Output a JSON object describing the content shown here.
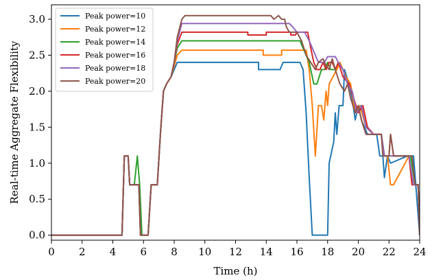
{
  "chart_data": {
    "type": "line",
    "xlabel": "Time (h)",
    "ylabel": "Real-time Aggregate Flexibility",
    "xlim": [
      0,
      24
    ],
    "ylim": [
      -0.07,
      3.2
    ],
    "xticks": [
      0,
      2,
      4,
      6,
      8,
      10,
      12,
      14,
      16,
      18,
      20,
      22,
      24
    ],
    "yticks": [
      0.0,
      0.5,
      1.0,
      1.5,
      2.0,
      2.5,
      3.0
    ],
    "ytick_labels": [
      "0.0",
      "0.5",
      "1.0",
      "1.5",
      "2.0",
      "2.5",
      "3.0"
    ],
    "grid": false,
    "legend": "upper-left",
    "series": [
      {
        "name": "Peak power=10",
        "color": "#1f77b4",
        "points": [
          [
            0,
            0
          ],
          [
            4.6,
            0
          ],
          [
            4.75,
            1.1
          ],
          [
            5.0,
            1.1
          ],
          [
            5.1,
            0.7
          ],
          [
            5.4,
            0.7
          ],
          [
            5.7,
            0.7
          ],
          [
            5.8,
            0
          ],
          [
            6.3,
            0
          ],
          [
            6.5,
            0.7
          ],
          [
            6.9,
            0.7
          ],
          [
            7.1,
            1.4
          ],
          [
            7.3,
            2.0
          ],
          [
            7.5,
            2.1
          ],
          [
            7.8,
            2.2
          ],
          [
            8.0,
            2.3
          ],
          [
            8.2,
            2.4
          ],
          [
            13.5,
            2.4
          ],
          [
            13.5,
            2.3
          ],
          [
            14.9,
            2.3
          ],
          [
            15.1,
            2.4
          ],
          [
            16.2,
            2.4
          ],
          [
            16.4,
            2.3
          ],
          [
            16.6,
            1.7
          ],
          [
            16.8,
            0.8
          ],
          [
            17.0,
            0
          ],
          [
            18.0,
            0
          ],
          [
            18.1,
            1.0
          ],
          [
            18.4,
            1.3
          ],
          [
            18.5,
            1.7
          ],
          [
            18.6,
            1.4
          ],
          [
            18.75,
            1.8
          ],
          [
            19.0,
            1.8
          ],
          [
            19.1,
            2.3
          ],
          [
            19.4,
            2.1
          ],
          [
            19.6,
            1.9
          ],
          [
            19.8,
            1.6
          ],
          [
            20.0,
            1.8
          ],
          [
            20.2,
            1.6
          ],
          [
            20.6,
            1.4
          ],
          [
            21.2,
            1.4
          ],
          [
            21.4,
            1.1
          ],
          [
            21.6,
            1.1
          ],
          [
            21.7,
            0.8
          ],
          [
            21.9,
            1.1
          ],
          [
            22.1,
            1.0
          ],
          [
            23.2,
            1.1
          ],
          [
            23.6,
            1.1
          ],
          [
            24,
            0
          ]
        ]
      },
      {
        "name": "Peak power=12",
        "color": "#ff7f0e",
        "points": [
          [
            0,
            0
          ],
          [
            4.6,
            0
          ],
          [
            4.75,
            1.1
          ],
          [
            5.0,
            1.1
          ],
          [
            5.1,
            0.7
          ],
          [
            5.7,
            0.7
          ],
          [
            5.8,
            0
          ],
          [
            6.3,
            0
          ],
          [
            6.5,
            0.7
          ],
          [
            6.9,
            0.7
          ],
          [
            7.1,
            1.4
          ],
          [
            7.3,
            2.0
          ],
          [
            7.5,
            2.1
          ],
          [
            7.8,
            2.2
          ],
          [
            8.0,
            2.35
          ],
          [
            8.2,
            2.5
          ],
          [
            8.5,
            2.57
          ],
          [
            13.8,
            2.57
          ],
          [
            13.8,
            2.5
          ],
          [
            15.0,
            2.5
          ],
          [
            15.0,
            2.57
          ],
          [
            16.6,
            2.57
          ],
          [
            16.8,
            2.3
          ],
          [
            17.0,
            1.8
          ],
          [
            17.2,
            1.1
          ],
          [
            17.4,
            1.8
          ],
          [
            17.6,
            1.8
          ],
          [
            17.75,
            1.6
          ],
          [
            17.9,
            2.0
          ],
          [
            18.0,
            1.8
          ],
          [
            18.1,
            2.1
          ],
          [
            18.6,
            2.3
          ],
          [
            18.8,
            2.4
          ],
          [
            19.2,
            2.2
          ],
          [
            19.5,
            2.1
          ],
          [
            19.8,
            1.7
          ],
          [
            20.1,
            1.8
          ],
          [
            20.5,
            1.5
          ],
          [
            21.0,
            1.4
          ],
          [
            21.5,
            1.4
          ],
          [
            21.7,
            1.1
          ],
          [
            21.9,
            1.1
          ],
          [
            22.1,
            0.7
          ],
          [
            22.3,
            0.7
          ],
          [
            23.3,
            1.1
          ],
          [
            23.5,
            0.7
          ],
          [
            23.9,
            0.7
          ],
          [
            24,
            0
          ]
        ]
      },
      {
        "name": "Peak power=14",
        "color": "#2ca02c",
        "points": [
          [
            0,
            0
          ],
          [
            4.6,
            0
          ],
          [
            4.75,
            1.1
          ],
          [
            5.0,
            1.1
          ],
          [
            5.1,
            0.7
          ],
          [
            5.4,
            0.7
          ],
          [
            5.6,
            1.1
          ],
          [
            5.75,
            0.7
          ],
          [
            5.9,
            0
          ],
          [
            6.3,
            0
          ],
          [
            6.5,
            0.7
          ],
          [
            6.9,
            0.7
          ],
          [
            7.1,
            1.4
          ],
          [
            7.3,
            2.0
          ],
          [
            7.5,
            2.1
          ],
          [
            7.8,
            2.2
          ],
          [
            8.0,
            2.4
          ],
          [
            8.2,
            2.6
          ],
          [
            8.5,
            2.7
          ],
          [
            16.2,
            2.7
          ],
          [
            16.4,
            2.6
          ],
          [
            16.8,
            2.4
          ],
          [
            17.1,
            2.1
          ],
          [
            17.3,
            2.1
          ],
          [
            17.6,
            2.3
          ],
          [
            17.8,
            2.3
          ],
          [
            18.0,
            2.4
          ],
          [
            18.2,
            2.3
          ],
          [
            18.5,
            2.3
          ],
          [
            18.7,
            2.4
          ],
          [
            19.0,
            2.3
          ],
          [
            19.3,
            2.1
          ],
          [
            19.6,
            2.0
          ],
          [
            19.9,
            1.7
          ],
          [
            20.2,
            1.8
          ],
          [
            20.5,
            1.5
          ],
          [
            21.0,
            1.4
          ],
          [
            21.5,
            1.4
          ],
          [
            21.7,
            1.1
          ],
          [
            22.0,
            1.1
          ],
          [
            22.2,
            1.1
          ],
          [
            23.4,
            1.1
          ],
          [
            23.7,
            0.7
          ],
          [
            23.9,
            0.7
          ],
          [
            24,
            0
          ]
        ]
      },
      {
        "name": "Peak power=16",
        "color": "#d62728",
        "points": [
          [
            0,
            0
          ],
          [
            4.6,
            0
          ],
          [
            4.75,
            1.1
          ],
          [
            5.0,
            1.1
          ],
          [
            5.1,
            0.7
          ],
          [
            5.7,
            0.7
          ],
          [
            5.8,
            0
          ],
          [
            6.3,
            0
          ],
          [
            6.5,
            0.7
          ],
          [
            6.9,
            0.7
          ],
          [
            7.1,
            1.4
          ],
          [
            7.3,
            2.0
          ],
          [
            7.5,
            2.1
          ],
          [
            7.8,
            2.2
          ],
          [
            8.0,
            2.4
          ],
          [
            8.2,
            2.65
          ],
          [
            8.5,
            2.82
          ],
          [
            12.8,
            2.82
          ],
          [
            12.8,
            2.78
          ],
          [
            14.0,
            2.78
          ],
          [
            14.0,
            2.82
          ],
          [
            15.6,
            2.82
          ],
          [
            15.6,
            2.78
          ],
          [
            15.9,
            2.78
          ],
          [
            16.0,
            2.82
          ],
          [
            16.7,
            2.82
          ],
          [
            16.9,
            2.6
          ],
          [
            17.1,
            2.4
          ],
          [
            17.3,
            2.3
          ],
          [
            17.5,
            2.3
          ],
          [
            17.7,
            2.4
          ],
          [
            17.9,
            2.3
          ],
          [
            18.1,
            2.4
          ],
          [
            18.3,
            2.4
          ],
          [
            18.5,
            2.3
          ],
          [
            18.7,
            2.4
          ],
          [
            19.0,
            2.2
          ],
          [
            19.4,
            2.1
          ],
          [
            19.7,
            1.9
          ],
          [
            20.0,
            1.7
          ],
          [
            20.3,
            1.8
          ],
          [
            20.6,
            1.5
          ],
          [
            21.0,
            1.4
          ],
          [
            21.5,
            1.4
          ],
          [
            21.7,
            1.1
          ],
          [
            22.0,
            1.1
          ],
          [
            22.1,
            1.4
          ],
          [
            22.3,
            1.1
          ],
          [
            23.3,
            1.1
          ],
          [
            23.5,
            0.7
          ],
          [
            23.9,
            0.7
          ],
          [
            24,
            0
          ]
        ]
      },
      {
        "name": "Peak power=18",
        "color": "#9467bd",
        "points": [
          [
            0,
            0
          ],
          [
            4.6,
            0
          ],
          [
            4.75,
            1.1
          ],
          [
            5.0,
            1.1
          ],
          [
            5.1,
            0.7
          ],
          [
            5.7,
            0.7
          ],
          [
            5.8,
            0
          ],
          [
            6.3,
            0
          ],
          [
            6.5,
            0.7
          ],
          [
            6.9,
            0.7
          ],
          [
            7.1,
            1.4
          ],
          [
            7.3,
            2.0
          ],
          [
            7.5,
            2.1
          ],
          [
            7.8,
            2.2
          ],
          [
            8.0,
            2.4
          ],
          [
            8.2,
            2.7
          ],
          [
            8.5,
            2.94
          ],
          [
            15.5,
            2.94
          ],
          [
            15.7,
            2.9
          ],
          [
            16.0,
            2.82
          ],
          [
            16.5,
            2.82
          ],
          [
            16.8,
            2.7
          ],
          [
            17.2,
            2.5
          ],
          [
            17.4,
            2.4
          ],
          [
            17.6,
            2.4
          ],
          [
            17.8,
            2.4
          ],
          [
            18.0,
            2.48
          ],
          [
            18.2,
            2.48
          ],
          [
            18.5,
            2.48
          ],
          [
            18.7,
            2.4
          ],
          [
            19.0,
            2.3
          ],
          [
            19.3,
            2.1
          ],
          [
            19.6,
            2.0
          ],
          [
            19.9,
            1.7
          ],
          [
            20.2,
            1.8
          ],
          [
            20.5,
            1.5
          ],
          [
            21.0,
            1.4
          ],
          [
            21.5,
            1.4
          ],
          [
            21.7,
            1.1
          ],
          [
            22.0,
            1.1
          ],
          [
            22.2,
            1.1
          ],
          [
            23.3,
            1.1
          ],
          [
            23.6,
            0.7
          ],
          [
            23.9,
            0.7
          ],
          [
            24,
            0
          ]
        ]
      },
      {
        "name": "Peak power=20",
        "color": "#8c564b",
        "points": [
          [
            0,
            0
          ],
          [
            4.6,
            0
          ],
          [
            4.75,
            1.1
          ],
          [
            5.0,
            1.1
          ],
          [
            5.1,
            0.7
          ],
          [
            5.7,
            0.7
          ],
          [
            5.8,
            0
          ],
          [
            6.3,
            0
          ],
          [
            6.5,
            0.7
          ],
          [
            6.9,
            0.7
          ],
          [
            7.1,
            1.4
          ],
          [
            7.3,
            2.0
          ],
          [
            7.5,
            2.1
          ],
          [
            7.8,
            2.2
          ],
          [
            8.0,
            2.4
          ],
          [
            8.2,
            2.75
          ],
          [
            8.5,
            3.0
          ],
          [
            8.7,
            3.05
          ],
          [
            14.3,
            3.05
          ],
          [
            14.5,
            3.0
          ],
          [
            14.8,
            3.05
          ],
          [
            15.0,
            3.0
          ],
          [
            15.2,
            3.0
          ],
          [
            15.3,
            2.9
          ],
          [
            15.5,
            2.82
          ],
          [
            16.0,
            2.82
          ],
          [
            16.3,
            2.7
          ],
          [
            16.6,
            2.5
          ],
          [
            16.9,
            2.4
          ],
          [
            17.2,
            2.3
          ],
          [
            17.4,
            2.4
          ],
          [
            17.7,
            2.45
          ],
          [
            17.9,
            2.35
          ],
          [
            18.1,
            2.3
          ],
          [
            18.3,
            2.45
          ],
          [
            18.5,
            2.3
          ],
          [
            18.8,
            2.1
          ],
          [
            19.1,
            2.0
          ],
          [
            19.3,
            2.1
          ],
          [
            19.5,
            1.9
          ],
          [
            19.8,
            1.7
          ],
          [
            20.0,
            1.8
          ],
          [
            20.2,
            1.6
          ],
          [
            20.5,
            1.4
          ],
          [
            21.0,
            1.4
          ],
          [
            21.5,
            1.4
          ],
          [
            21.6,
            1.1
          ],
          [
            22.0,
            1.1
          ],
          [
            22.1,
            1.4
          ],
          [
            22.3,
            1.1
          ],
          [
            23.1,
            1.1
          ],
          [
            23.3,
            1.1
          ],
          [
            23.5,
            1.1
          ],
          [
            23.7,
            0.7
          ],
          [
            23.9,
            0.7
          ],
          [
            24,
            0
          ]
        ]
      }
    ]
  }
}
